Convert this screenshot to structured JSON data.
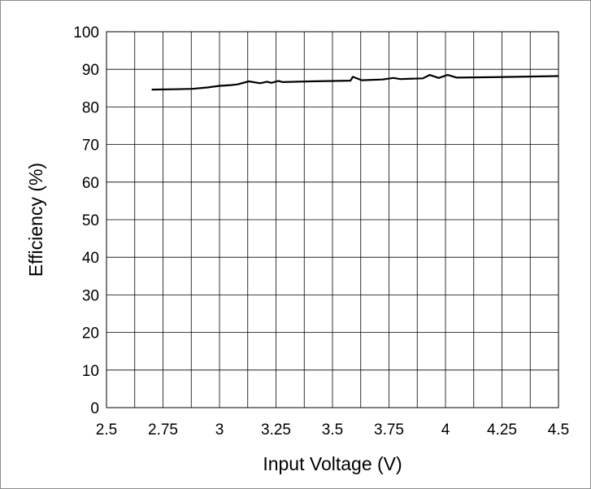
{
  "chart_data": {
    "type": "line",
    "title": "",
    "xlabel": "Input Voltage (V)",
    "ylabel": "Efficiency (%)",
    "xlim": [
      2.5,
      4.5
    ],
    "ylim": [
      0,
      100
    ],
    "x_ticks": [
      "2.5",
      "2.75",
      "3",
      "3.25",
      "3.5",
      "3.75",
      "4",
      "4.25",
      "4.5"
    ],
    "y_ticks": [
      "0",
      "10",
      "20",
      "30",
      "40",
      "50",
      "60",
      "70",
      "80",
      "90",
      "100"
    ],
    "grid": true,
    "legend": "none",
    "line_color": "#000000",
    "grid_color": "#000000",
    "series": [
      {
        "x": [
          2.7,
          2.8,
          2.88,
          2.95,
          3.0,
          3.05,
          3.08,
          3.13,
          3.18,
          3.21,
          3.23,
          3.26,
          3.28,
          3.4,
          3.58,
          3.59,
          3.63,
          3.72,
          3.77,
          3.8,
          3.9,
          3.93,
          3.97,
          4.01,
          4.05,
          4.2,
          4.5
        ],
        "y": [
          84.6,
          84.7,
          84.8,
          85.2,
          85.6,
          85.8,
          86.0,
          86.8,
          86.3,
          86.7,
          86.4,
          86.9,
          86.6,
          86.8,
          87.0,
          88.0,
          87.1,
          87.3,
          87.7,
          87.4,
          87.6,
          88.5,
          87.7,
          88.5,
          87.8,
          87.9,
          88.2
        ]
      }
    ]
  }
}
